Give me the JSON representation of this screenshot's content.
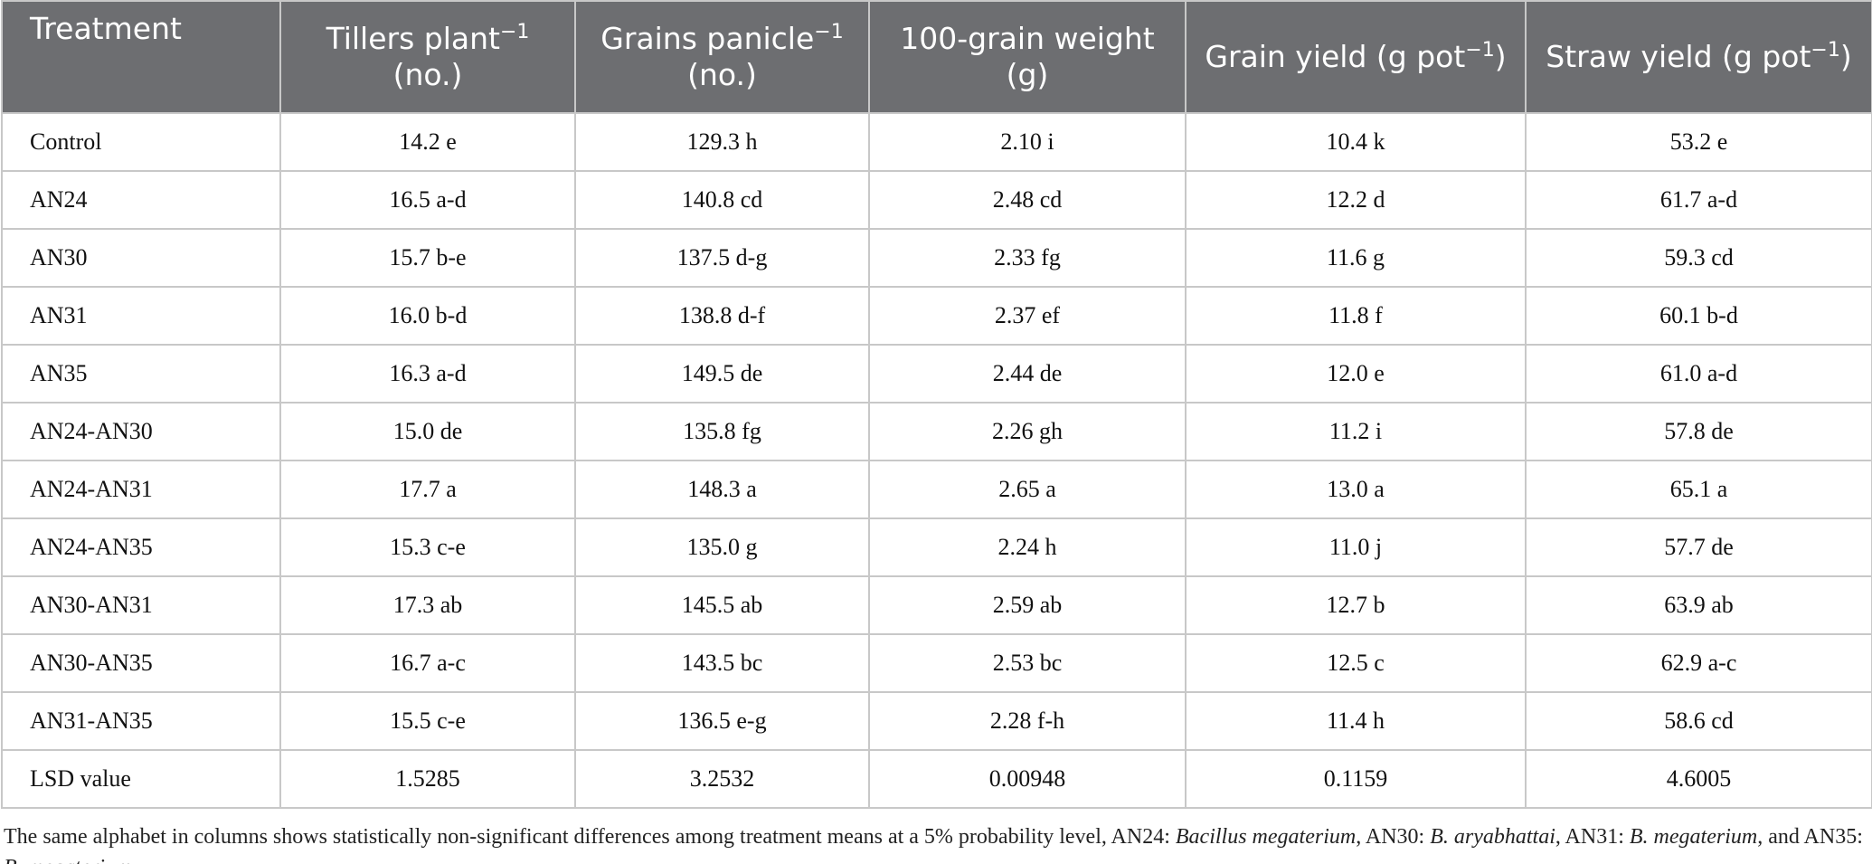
{
  "table": {
    "headers": [
      "Treatment",
      {
        "main": "Tillers plant",
        "sup": "−1",
        "rest": " (no.)"
      },
      {
        "main": "Grains panicle",
        "sup": "−1",
        "rest": " (no.)"
      },
      "100-grain weight (g)",
      {
        "main": "Grain yield (g pot",
        "sup": "−1",
        "rest": ")"
      },
      {
        "main": "Straw yield (g pot",
        "sup": "−1",
        "rest": ")"
      }
    ],
    "rows": [
      [
        "Control",
        "14.2 e",
        "129.3 h",
        "2.10 i",
        "10.4 k",
        "53.2 e"
      ],
      [
        "AN24",
        "16.5 a-d",
        "140.8 cd",
        "2.48 cd",
        "12.2 d",
        "61.7 a-d"
      ],
      [
        "AN30",
        "15.7 b-e",
        "137.5 d-g",
        "2.33 fg",
        "11.6 g",
        "59.3 cd"
      ],
      [
        "AN31",
        "16.0 b-d",
        "138.8 d-f",
        "2.37 ef",
        "11.8 f",
        "60.1 b-d"
      ],
      [
        "AN35",
        "16.3 a-d",
        "149.5 de",
        "2.44 de",
        "12.0 e",
        "61.0 a-d"
      ],
      [
        "AN24-AN30",
        "15.0 de",
        "135.8 fg",
        "2.26 gh",
        "11.2 i",
        "57.8 de"
      ],
      [
        "AN24-AN31",
        "17.7 a",
        "148.3 a",
        "2.65 a",
        "13.0 a",
        "65.1 a"
      ],
      [
        "AN24-AN35",
        "15.3 c-e",
        "135.0 g",
        "2.24 h",
        "11.0 j",
        "57.7 de"
      ],
      [
        "AN30-AN31",
        "17.3 ab",
        "145.5 ab",
        "2.59 ab",
        "12.7 b",
        "63.9 ab"
      ],
      [
        "AN30-AN35",
        "16.7 a-c",
        "143.5 bc",
        "2.53 bc",
        "12.5 c",
        "62.9 a-c"
      ],
      [
        "AN31-AN35",
        "15.5 c-e",
        "136.5 e-g",
        "2.28 f-h",
        "11.4 h",
        "58.6 cd"
      ],
      [
        "LSD value",
        "1.5285",
        "3.2532",
        "0.00948",
        "0.1159",
        "4.6005"
      ]
    ]
  },
  "footnote": [
    {
      "text": "The same alphabet in columns shows statistically non-significant differences among treatment means at a 5% probability level, AN24: "
    },
    {
      "text": "Bacillus megaterium",
      "italic": true
    },
    {
      "text": ", AN30: "
    },
    {
      "text": "B. aryabhattai",
      "italic": true
    },
    {
      "text": ", AN31: "
    },
    {
      "text": "B. megaterium",
      "italic": true
    },
    {
      "text": ", and AN35: "
    },
    {
      "text": "B. megaterium",
      "italic": true
    },
    {
      "text": "."
    }
  ]
}
